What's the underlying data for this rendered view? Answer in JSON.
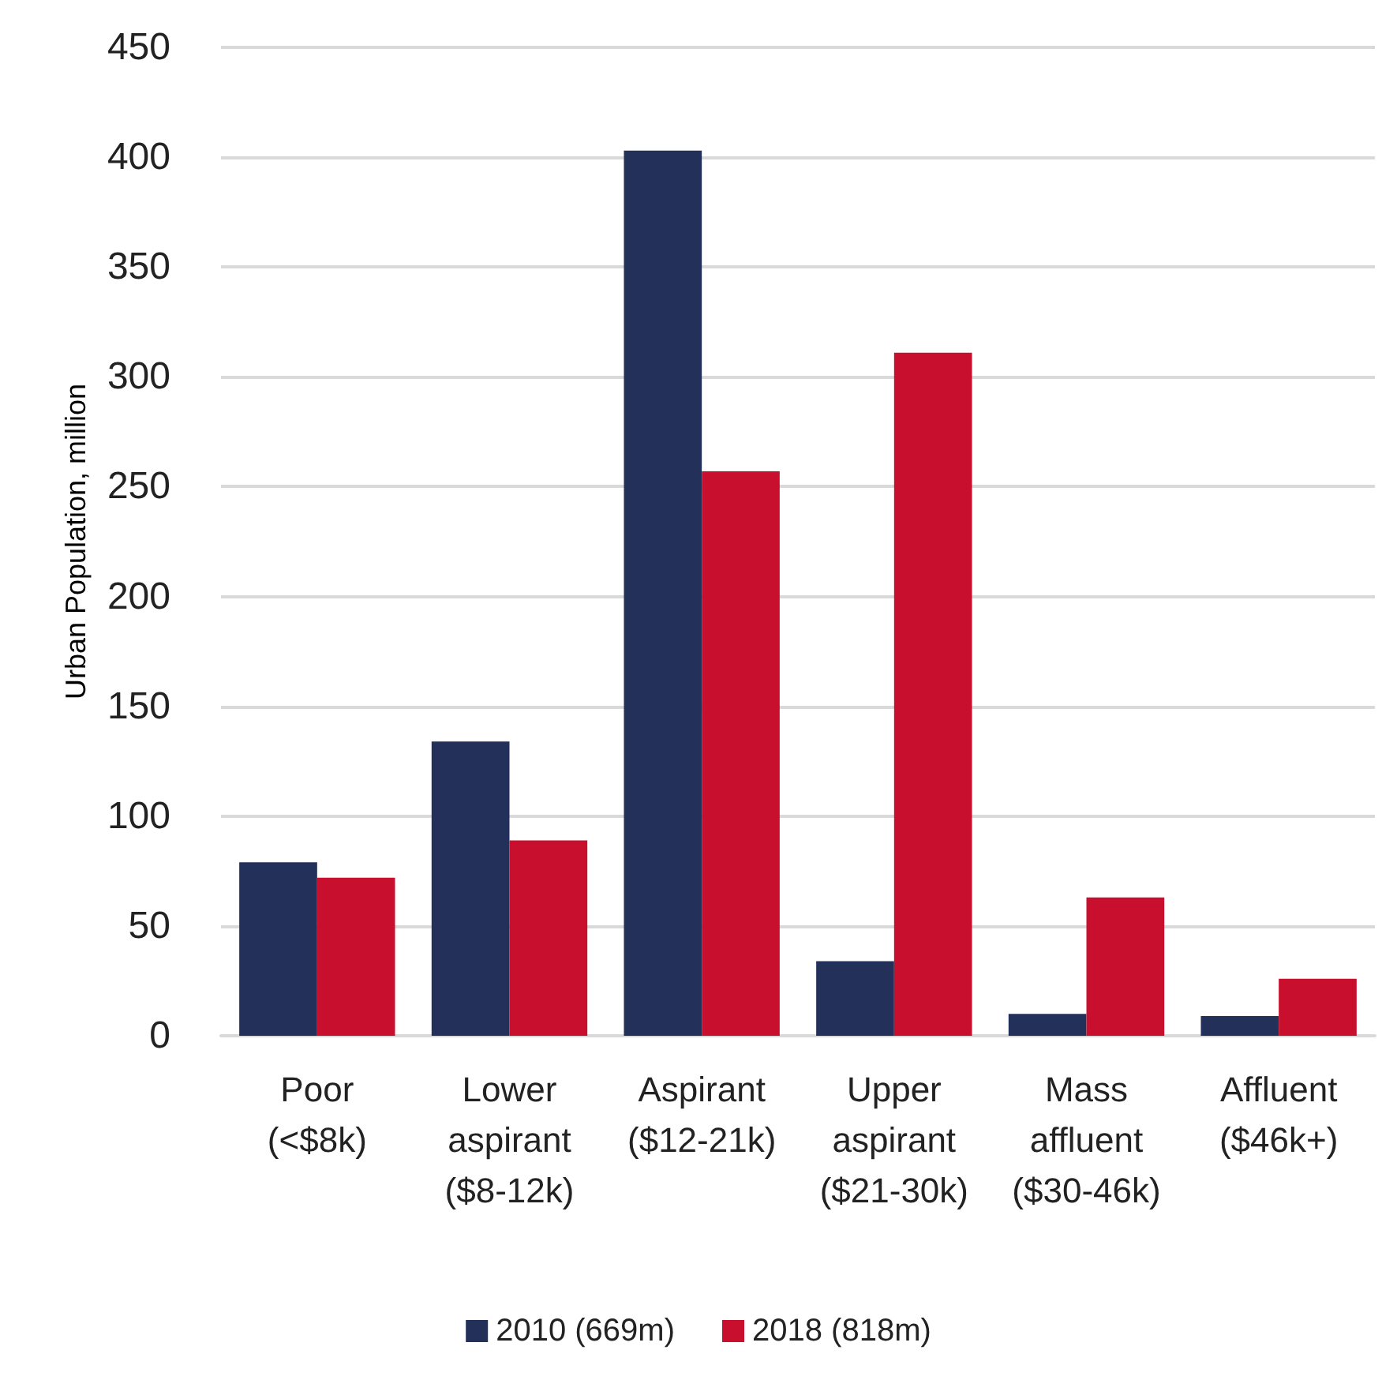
{
  "chart_data": {
    "type": "bar",
    "ylabel": "Urban Population, million",
    "categories": [
      "Poor\n(<$8k)",
      "Lower\naspirant\n($8-12k)",
      "Aspirant\n($12-21k)",
      "Upper\naspirant\n($21-30k)",
      "Mass\naffluent\n($30-46k)",
      "Affluent\n($46k+)"
    ],
    "series": [
      {
        "name": "2010 (669m)",
        "color": "#22305a",
        "values": [
          79,
          134,
          403,
          34,
          10,
          9
        ]
      },
      {
        "name": "2018 (818m)",
        "color": "#c8102e",
        "values": [
          72,
          89,
          257,
          311,
          63,
          26
        ]
      }
    ],
    "ylim": [
      0,
      450
    ],
    "yticks": [
      0,
      50,
      100,
      150,
      200,
      250,
      300,
      350,
      400,
      450
    ],
    "grid": "y",
    "legend": "bottom"
  }
}
